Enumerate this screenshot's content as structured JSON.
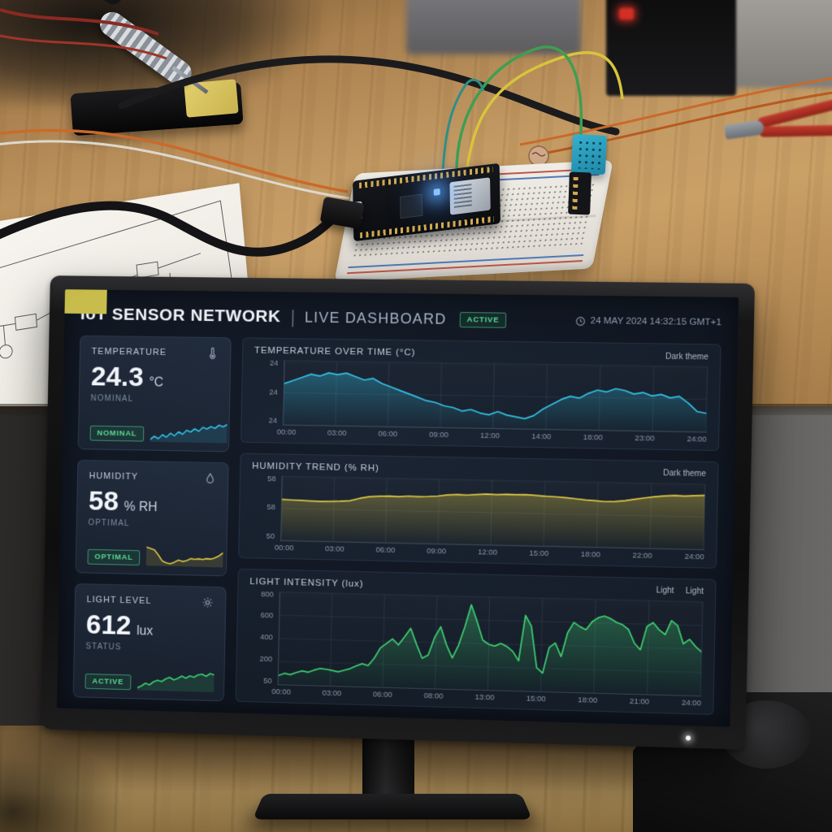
{
  "header": {
    "title": "IoT SENSOR NETWORK",
    "separator": "|",
    "subtitle": "LIVE DASHBOARD",
    "status_badge": "ACTIVE",
    "timestamp": "24 MAY 2024 14:32:15 GMT+1",
    "clock_icon": "clock-icon"
  },
  "cards": [
    {
      "label": "TEMPERATURE",
      "icon": "thermometer-icon",
      "value": "24.3",
      "unit": "°C",
      "status_label": "NOMINAL",
      "badge": "NOMINAL",
      "spark_color": "#2fc2e3",
      "spark": [
        30,
        34,
        31,
        36,
        33,
        38,
        35,
        40,
        37,
        42,
        40,
        44,
        41,
        46,
        44,
        47,
        45,
        49,
        47,
        50
      ]
    },
    {
      "label": "HUMIDITY",
      "icon": "droplet-icon",
      "value": "58",
      "unit": "% RH",
      "status_label": "OPTIMAL",
      "badge": "OPTIMAL",
      "spark_color": "#e2c83e",
      "spark": [
        70,
        67,
        64,
        52,
        38,
        34,
        32,
        36,
        41,
        38,
        40,
        45,
        44,
        45,
        44,
        46,
        45,
        48,
        53,
        60
      ]
    },
    {
      "label": "LIGHT LEVEL",
      "icon": "sun-icon",
      "value": "612",
      "unit": "lux",
      "status_label": "STATUS",
      "badge": "ACTIVE",
      "spark_color": "#3ccf6f",
      "spark": [
        30,
        35,
        42,
        38,
        46,
        50,
        47,
        54,
        58,
        52,
        56,
        62,
        57,
        63,
        60,
        66,
        68,
        63,
        70,
        67
      ]
    }
  ],
  "chart_data": [
    {
      "id": "temperature-over-time",
      "type": "line",
      "title": "TEMPERATURE OVER TIME (°C)",
      "legend": [
        {
          "label": "Dark theme",
          "color": "#2fc2e3"
        }
      ],
      "y_ticks": [
        "24",
        "24",
        "24"
      ],
      "x_ticks": [
        "00:00",
        "03:00",
        "06:00",
        "09:00",
        "12:00",
        "14:00",
        "18:00",
        "23:00",
        "24:00"
      ],
      "ylim": [
        22.7,
        24.65
      ],
      "grid": true,
      "series": [
        {
          "name": "Dark theme",
          "color": "#2fc2e3",
          "values": [
            23.95,
            24.05,
            24.15,
            24.25,
            24.2,
            24.3,
            24.25,
            24.3,
            24.2,
            24.1,
            24.15,
            24.0,
            23.9,
            23.8,
            23.7,
            23.6,
            23.5,
            23.45,
            23.35,
            23.3,
            23.2,
            23.25,
            23.15,
            23.1,
            23.2,
            23.1,
            23.05,
            23.0,
            23.1,
            23.3,
            23.45,
            23.6,
            23.7,
            23.65,
            23.8,
            23.9,
            23.85,
            23.95,
            23.9,
            23.8,
            23.85,
            23.75,
            23.8,
            23.7,
            23.75,
            23.55,
            23.3,
            23.25
          ]
        }
      ]
    },
    {
      "id": "humidity-trend",
      "type": "area",
      "title": "HUMIDITY TREND (% RH)",
      "legend": [
        {
          "label": "Dark theme",
          "color": "#e2c83e"
        }
      ],
      "y_ticks": [
        "58",
        "58",
        "50"
      ],
      "x_ticks": [
        "00:00",
        "03:00",
        "06:00",
        "09:00",
        "12:00",
        "15:00",
        "18:00",
        "22:00",
        "24:00"
      ],
      "ylim": [
        50,
        60
      ],
      "grid": true,
      "series": [
        {
          "name": "Dark theme",
          "color": "#e2c83e",
          "values": [
            56.4,
            56.35,
            56.3,
            56.25,
            56.2,
            56.25,
            56.3,
            56.4,
            56.8,
            57.1,
            57.2,
            57.25,
            57.2,
            57.3,
            57.25,
            57.3,
            57.4,
            57.6,
            57.7,
            57.65,
            57.75,
            57.85,
            57.8,
            57.9,
            57.85,
            57.9,
            57.8,
            57.7,
            57.65,
            57.55,
            57.4,
            57.25,
            57.15,
            57.05,
            57.1,
            57.25,
            57.5,
            57.75,
            57.95,
            58.1,
            58.2,
            58.15,
            58.25,
            58.3
          ]
        }
      ]
    },
    {
      "id": "light-intensity",
      "type": "area",
      "title": "LIGHT INTENSITY (lux)",
      "legend": [
        {
          "label": "Light",
          "color": "#3ccf6f"
        },
        {
          "label": "Light",
          "color": "#c9bd4a"
        }
      ],
      "y_ticks": [
        "800",
        "600",
        "400",
        "200",
        "50"
      ],
      "x_ticks": [
        "00:00",
        "03:00",
        "06:00",
        "08:00",
        "13:00",
        "15:00",
        "18:00",
        "21:00",
        "24:00"
      ],
      "ylim": [
        50,
        850
      ],
      "grid": true,
      "series": [
        {
          "name": "Light",
          "color": "#3ccf6f",
          "values": [
            130,
            150,
            140,
            160,
            175,
            165,
            185,
            200,
            195,
            185,
            175,
            190,
            205,
            230,
            250,
            235,
            300,
            390,
            430,
            470,
            420,
            490,
            565,
            430,
            310,
            340,
            490,
            585,
            430,
            320,
            430,
            590,
            780,
            640,
            480,
            445,
            430,
            455,
            430,
            390,
            310,
            700,
            610,
            255,
            210,
            430,
            470,
            355,
            560,
            650,
            615,
            590,
            660,
            695,
            710,
            690,
            660,
            640,
            600,
            485,
            430,
            630,
            665,
            605,
            565,
            685,
            645,
            490,
            530,
            470,
            425
          ]
        }
      ]
    }
  ]
}
